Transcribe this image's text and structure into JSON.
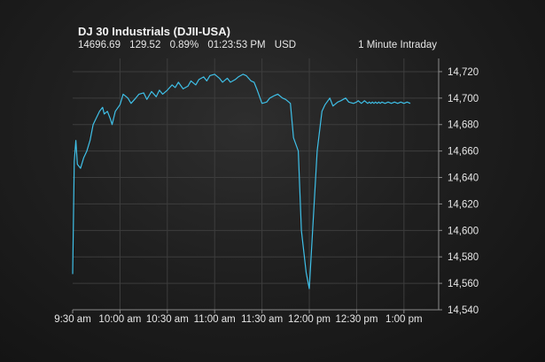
{
  "header": {
    "title": "DJ 30 Industrials (DJII-USA)",
    "last": "14696.69",
    "change": "129.52",
    "change_pct": "0.89%",
    "time": "01:23:53 PM",
    "currency": "USD",
    "interval": "1 Minute Intraday"
  },
  "colors": {
    "line": "#3fc0e8",
    "grid": "#3d3d3d",
    "axis": "#8a8a8a",
    "text": "#e6e6e6"
  },
  "chart_data": {
    "type": "line",
    "title": "DJ 30 Industrials (DJII-USA)",
    "xlabel": "",
    "ylabel": "",
    "x_tick_labels": [
      "9:30 am",
      "10:00 am",
      "10:30 am",
      "11:00 am",
      "11:30 am",
      "12:00 pm",
      "12:30 pm",
      "1:00 pm"
    ],
    "y_tick_labels": [
      "14,540",
      "14,560",
      "14,580",
      "14,600",
      "14,620",
      "14,640",
      "14,660",
      "14,680",
      "14,700",
      "14,720"
    ],
    "ylim": [
      14540,
      14730
    ],
    "grid": true,
    "x_unit": "minutes_since_open",
    "series": [
      {
        "name": "",
        "x": [
          0,
          1,
          2,
          3,
          5,
          7,
          9,
          11,
          13,
          15,
          17,
          19,
          20,
          22,
          24,
          25,
          27,
          30,
          32,
          35,
          37,
          40,
          42,
          45,
          47,
          50,
          53,
          55,
          57,
          60,
          63,
          65,
          67,
          70,
          73,
          75,
          78,
          80,
          83,
          85,
          87,
          90,
          93,
          95,
          98,
          100,
          103,
          105,
          108,
          110,
          113,
          115,
          117,
          120,
          123,
          125,
          128,
          130,
          133,
          135,
          138,
          140,
          143,
          145,
          148,
          150,
          152,
          155,
          158,
          160,
          163,
          165,
          168,
          170,
          173,
          175,
          178,
          180,
          181,
          182,
          183,
          184,
          185,
          186,
          187,
          188,
          189,
          190,
          191,
          192,
          193,
          194,
          195,
          196,
          198,
          200,
          202,
          204,
          206,
          208,
          210,
          212,
          214
        ],
        "y": [
          14567,
          14652,
          14668,
          14650,
          14647,
          14655,
          14660,
          14668,
          14680,
          14685,
          14690,
          14693,
          14688,
          14690,
          14684,
          14680,
          14690,
          14695,
          14703,
          14700,
          14696,
          14700,
          14703,
          14704,
          14699,
          14705,
          14701,
          14706,
          14703,
          14706,
          14710,
          14708,
          14712,
          14707,
          14709,
          14713,
          14710,
          14714,
          14716,
          14713,
          14717,
          14718,
          14715,
          14712,
          14715,
          14712,
          14714,
          14716,
          14718,
          14717,
          14713,
          14712,
          14706,
          14696,
          14697,
          14700,
          14702,
          14703,
          14700,
          14699,
          14696,
          14670,
          14660,
          14600,
          14568,
          14556,
          14598,
          14660,
          14690,
          14695,
          14700,
          14694,
          14697,
          14698,
          14700,
          14697,
          14696,
          14697,
          14698,
          14697,
          14696,
          14697,
          14698,
          14697,
          14696,
          14697,
          14696,
          14697,
          14696,
          14697,
          14696,
          14697,
          14696,
          14697,
          14696,
          14697,
          14696,
          14697,
          14696,
          14697,
          14696,
          14697,
          14696
        ]
      }
    ]
  }
}
